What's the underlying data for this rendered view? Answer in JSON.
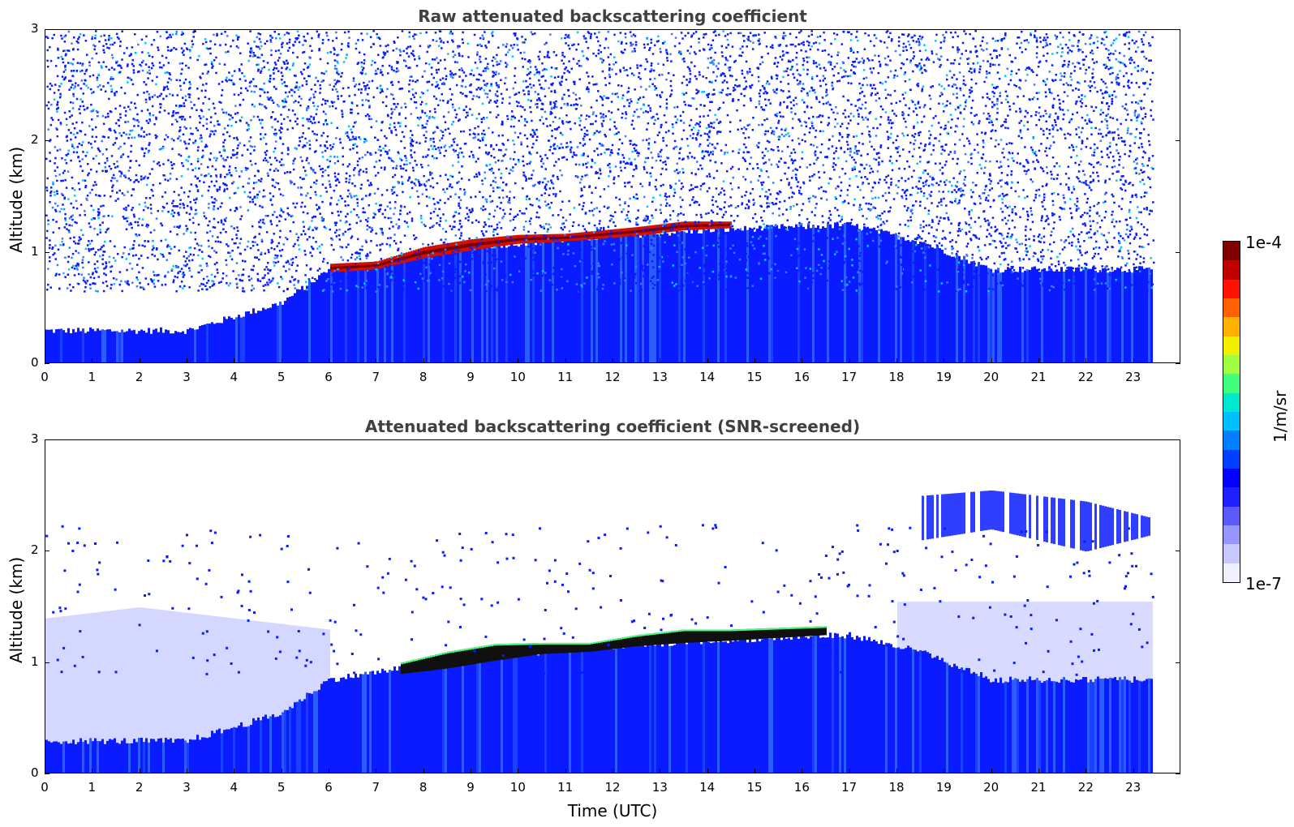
{
  "chart_data": [
    {
      "type": "heatmap",
      "title": "Raw attenuated backscattering coefficient",
      "xlabel": "",
      "ylabel": "Altitude (km)",
      "xlim": [
        0,
        24
      ],
      "ylim": [
        0,
        3
      ],
      "x_ticks": [
        0,
        1,
        2,
        3,
        4,
        5,
        6,
        7,
        8,
        9,
        10,
        11,
        12,
        13,
        14,
        15,
        16,
        17,
        18,
        19,
        20,
        21,
        22,
        23
      ],
      "y_ticks": [
        0,
        1,
        2,
        3
      ],
      "data_end_time": 23.4,
      "noise": "dense",
      "boundary_layer_top": [
        [
          0,
          0.3
        ],
        [
          3,
          0.3
        ],
        [
          5,
          0.55
        ],
        [
          6,
          0.85
        ],
        [
          9,
          1.05
        ],
        [
          12,
          1.15
        ],
        [
          14,
          1.2
        ],
        [
          17,
          1.25
        ],
        [
          18.5,
          1.1
        ],
        [
          20,
          0.85
        ],
        [
          23.4,
          0.85
        ]
      ],
      "cloud_layer": [
        [
          6,
          0.82,
          0.9
        ],
        [
          7,
          0.85,
          0.92
        ],
        [
          8,
          0.95,
          1.05
        ],
        [
          9,
          1.02,
          1.12
        ],
        [
          10,
          1.08,
          1.16
        ],
        [
          11,
          1.1,
          1.17
        ],
        [
          12.5,
          1.15,
          1.23
        ],
        [
          13.5,
          1.2,
          1.28
        ],
        [
          14.5,
          1.22,
          1.28
        ]
      ]
    },
    {
      "type": "heatmap",
      "title": "Attenuated backscattering coefficient (SNR-screened)",
      "xlabel": "Time (UTC)",
      "ylabel": "Altitude (km)",
      "xlim": [
        0,
        24
      ],
      "ylim": [
        0,
        3
      ],
      "x_ticks": [
        0,
        1,
        2,
        3,
        4,
        5,
        6,
        7,
        8,
        9,
        10,
        11,
        12,
        13,
        14,
        15,
        16,
        17,
        18,
        19,
        20,
        21,
        22,
        23
      ],
      "y_ticks": [
        0,
        1,
        2,
        3
      ],
      "data_end_time": 23.4,
      "noise": "sparse",
      "boundary_layer_top": [
        [
          0,
          0.3
        ],
        [
          3,
          0.3
        ],
        [
          5,
          0.55
        ],
        [
          6,
          0.85
        ],
        [
          9,
          1.05
        ],
        [
          12,
          1.15
        ],
        [
          14,
          1.2
        ],
        [
          17,
          1.25
        ],
        [
          18.5,
          1.1
        ],
        [
          20,
          0.85
        ],
        [
          23.4,
          0.85
        ]
      ],
      "cloud_layer": [
        [
          7.5,
          0.9,
          1.0
        ],
        [
          8.5,
          0.95,
          1.1
        ],
        [
          9.5,
          1.02,
          1.17
        ],
        [
          10.5,
          1.08,
          1.18
        ],
        [
          11.5,
          1.1,
          1.18
        ],
        [
          12.5,
          1.15,
          1.25
        ],
        [
          13.5,
          1.18,
          1.3
        ],
        [
          14.5,
          1.2,
          1.3
        ],
        [
          16.5,
          1.25,
          1.33
        ]
      ],
      "aerosol_top_layer": [
        [
          18.5,
          2.1,
          2.5
        ],
        [
          20,
          2.2,
          2.55
        ],
        [
          22,
          2.0,
          2.45
        ],
        [
          23.4,
          2.15,
          2.3
        ]
      ]
    }
  ],
  "colorbar": {
    "max_label": "1e-4",
    "min_label": "1e-7",
    "unit": "1/m/sr",
    "colors": [
      "#f0f0ff",
      "#c8c8ff",
      "#9696ff",
      "#5a5aff",
      "#1e1eff",
      "#0000ff",
      "#0040ff",
      "#0080ff",
      "#00c0ff",
      "#00e8d0",
      "#40ff80",
      "#a0ff40",
      "#f0f000",
      "#ffb000",
      "#ff6000",
      "#ff1000",
      "#c00000",
      "#800000"
    ]
  },
  "colors": {
    "blue": "#0a1cff",
    "blue_light": "#2a5cff",
    "cyan": "#00c8ff",
    "red": "#d01000",
    "dark_red": "#7a0000"
  }
}
